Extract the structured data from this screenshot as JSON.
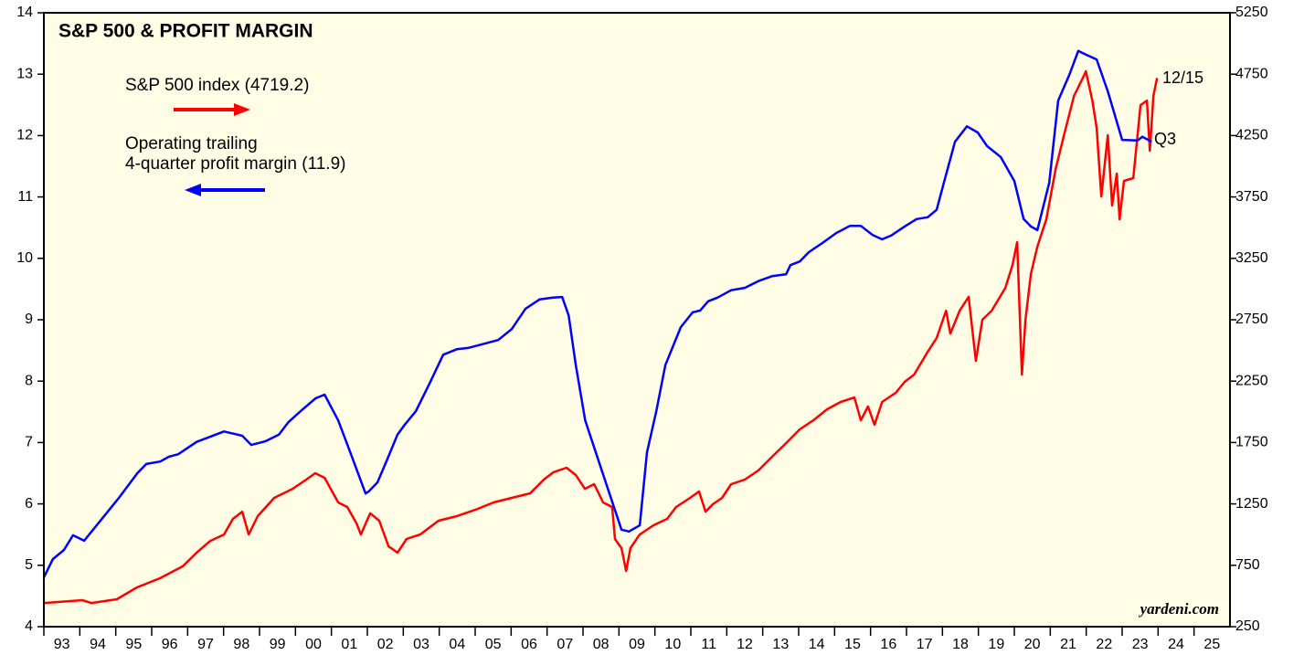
{
  "chart_data": {
    "type": "line",
    "title": "S&P 500 & PROFIT MARGIN",
    "annotations": {
      "sp_date": "12/15",
      "margin_date": "Q3",
      "source": "yardeni.com"
    },
    "xlim": [
      1993,
      2026
    ],
    "xticks": [
      {
        "value": 1993.5,
        "label": "93"
      },
      {
        "value": 1994.5,
        "label": "94"
      },
      {
        "value": 1995.5,
        "label": "95"
      },
      {
        "value": 1996.5,
        "label": "96"
      },
      {
        "value": 1997.5,
        "label": "97"
      },
      {
        "value": 1998.5,
        "label": "98"
      },
      {
        "value": 1999.5,
        "label": "99"
      },
      {
        "value": 2000.5,
        "label": "00"
      },
      {
        "value": 2001.5,
        "label": "01"
      },
      {
        "value": 2002.5,
        "label": "02"
      },
      {
        "value": 2003.5,
        "label": "03"
      },
      {
        "value": 2004.5,
        "label": "04"
      },
      {
        "value": 2005.5,
        "label": "05"
      },
      {
        "value": 2006.5,
        "label": "06"
      },
      {
        "value": 2007.5,
        "label": "07"
      },
      {
        "value": 2008.5,
        "label": "08"
      },
      {
        "value": 2009.5,
        "label": "09"
      },
      {
        "value": 2010.5,
        "label": "10"
      },
      {
        "value": 2011.5,
        "label": "11"
      },
      {
        "value": 2012.5,
        "label": "12"
      },
      {
        "value": 2013.5,
        "label": "13"
      },
      {
        "value": 2014.5,
        "label": "14"
      },
      {
        "value": 2015.5,
        "label": "15"
      },
      {
        "value": 2016.5,
        "label": "16"
      },
      {
        "value": 2017.5,
        "label": "17"
      },
      {
        "value": 2018.5,
        "label": "18"
      },
      {
        "value": 2019.5,
        "label": "19"
      },
      {
        "value": 2020.5,
        "label": "20"
      },
      {
        "value": 2021.5,
        "label": "21"
      },
      {
        "value": 2022.5,
        "label": "22"
      },
      {
        "value": 2023.5,
        "label": "23"
      },
      {
        "value": 2024.5,
        "label": "24"
      },
      {
        "value": 2025.5,
        "label": "25"
      }
    ],
    "ylim": [
      4,
      14
    ],
    "yticks": [
      4,
      5,
      6,
      7,
      8,
      9,
      10,
      11,
      12,
      13,
      14
    ],
    "y2lim": [
      250,
      5250
    ],
    "y2ticks": [
      250,
      750,
      1250,
      1750,
      2250,
      2750,
      3250,
      3750,
      4250,
      4750,
      5250
    ],
    "background": "#fffde6",
    "series": [
      {
        "name": "S&P 500 index (4719.2)",
        "color": "#ff0000",
        "axis": "y2",
        "x": [
          1993.0,
          1994.07,
          1994.32,
          1995.03,
          1995.59,
          1996.23,
          1996.86,
          1997.25,
          1997.63,
          1998.01,
          1998.26,
          1998.52,
          1998.7,
          1998.95,
          1999.41,
          1999.92,
          2000.3,
          2000.55,
          2000.81,
          2001.19,
          2001.44,
          2001.7,
          2001.82,
          2002.08,
          2002.33,
          2002.59,
          2002.84,
          2003.09,
          2003.47,
          2003.98,
          2004.49,
          2005.0,
          2005.51,
          2006.02,
          2006.53,
          2006.91,
          2007.17,
          2007.54,
          2007.8,
          2008.05,
          2008.31,
          2008.56,
          2008.81,
          2008.89,
          2009.07,
          2009.2,
          2009.32,
          2009.58,
          2009.96,
          2010.34,
          2010.59,
          2010.98,
          2011.23,
          2011.41,
          2011.61,
          2011.87,
          2012.12,
          2012.5,
          2012.88,
          2013.26,
          2013.65,
          2014.03,
          2014.41,
          2014.79,
          2015.17,
          2015.55,
          2015.73,
          2015.93,
          2016.11,
          2016.32,
          2016.7,
          2016.95,
          2017.21,
          2017.59,
          2017.84,
          2018.1,
          2018.22,
          2018.48,
          2018.73,
          2018.93,
          2019.11,
          2019.37,
          2019.75,
          2019.95,
          2020.08,
          2020.21,
          2020.31,
          2020.46,
          2020.64,
          2020.89,
          2021.15,
          2021.4,
          2021.66,
          2021.91,
          2021.99,
          2022.17,
          2022.29,
          2022.42,
          2022.6,
          2022.72,
          2022.85,
          2022.93,
          2023.05,
          2023.31,
          2023.51,
          2023.69,
          2023.77,
          2023.87,
          2023.97
        ],
        "values": [
          443,
          466,
          443,
          473,
          570,
          644,
          741,
          853,
          949,
          1001,
          1128,
          1187,
          1001,
          1150,
          1299,
          1373,
          1448,
          1500,
          1463,
          1262,
          1225,
          1091,
          1001,
          1173,
          1113,
          905,
          853,
          964,
          1001,
          1113,
          1150,
          1202,
          1262,
          1299,
          1336,
          1448,
          1507,
          1545,
          1485,
          1373,
          1411,
          1262,
          1225,
          964,
          890,
          704,
          890,
          1001,
          1076,
          1128,
          1225,
          1299,
          1351,
          1187,
          1247,
          1299,
          1411,
          1448,
          1522,
          1634,
          1745,
          1857,
          1931,
          2021,
          2080,
          2117,
          1931,
          2043,
          1894,
          2080,
          2155,
          2244,
          2303,
          2489,
          2601,
          2824,
          2638,
          2824,
          2936,
          2415,
          2750,
          2824,
          3010,
          3196,
          3382,
          2303,
          2750,
          3122,
          3345,
          3568,
          3977,
          4275,
          4573,
          4721,
          4774,
          4535,
          4312,
          3754,
          4253,
          3680,
          3940,
          3568,
          3881,
          3903,
          4498,
          4535,
          4126,
          4573,
          4719
        ]
      },
      {
        "name": "Operating trailing\n4-quarter profit margin  (11.9)",
        "color": "#0000ff",
        "axis": "y",
        "x": [
          1993.0,
          1993.25,
          1993.56,
          1993.81,
          1994.12,
          1994.58,
          1995.09,
          1995.6,
          1995.85,
          1996.24,
          1996.48,
          1996.74,
          1997.25,
          1998.01,
          1998.52,
          1998.77,
          1999.16,
          1999.54,
          1999.8,
          2000.18,
          2000.56,
          2000.81,
          2001.19,
          2001.57,
          2001.95,
          2002.03,
          2002.28,
          2002.53,
          2002.84,
          2003.04,
          2003.35,
          2003.73,
          2004.11,
          2004.49,
          2004.8,
          2005.26,
          2005.64,
          2006.02,
          2006.4,
          2006.79,
          2007.17,
          2007.42,
          2007.6,
          2007.8,
          2008.06,
          2008.44,
          2008.82,
          2009.07,
          2009.28,
          2009.58,
          2009.78,
          2010.04,
          2010.29,
          2010.72,
          2011.05,
          2011.26,
          2011.48,
          2011.74,
          2012.12,
          2012.5,
          2012.88,
          2013.26,
          2013.65,
          2013.77,
          2014.03,
          2014.28,
          2014.66,
          2015.04,
          2015.43,
          2015.73,
          2016.06,
          2016.32,
          2016.57,
          2016.95,
          2017.28,
          2017.59,
          2017.84,
          2018.04,
          2018.35,
          2018.68,
          2018.98,
          2019.24,
          2019.62,
          2020.0,
          2020.26,
          2020.46,
          2020.64,
          2020.97,
          2021.22,
          2021.53,
          2021.78,
          2021.99,
          2022.29,
          2022.6,
          2023.0,
          2023.43,
          2023.56,
          2023.82
        ],
        "values": [
          4.8,
          5.1,
          5.25,
          5.49,
          5.4,
          5.73,
          6.1,
          6.5,
          6.65,
          6.69,
          6.77,
          6.81,
          7.01,
          7.18,
          7.11,
          6.96,
          7.02,
          7.13,
          7.33,
          7.53,
          7.72,
          7.78,
          7.36,
          6.77,
          6.17,
          6.2,
          6.35,
          6.69,
          7.13,
          7.29,
          7.51,
          7.96,
          8.43,
          8.52,
          8.54,
          8.61,
          8.67,
          8.85,
          9.18,
          9.33,
          9.36,
          9.37,
          9.07,
          8.26,
          7.36,
          6.69,
          6.02,
          5.58,
          5.55,
          5.65,
          6.84,
          7.51,
          8.26,
          8.88,
          9.12,
          9.15,
          9.3,
          9.36,
          9.48,
          9.52,
          9.63,
          9.71,
          9.74,
          9.89,
          9.95,
          10.1,
          10.25,
          10.41,
          10.53,
          10.53,
          10.38,
          10.31,
          10.37,
          10.52,
          10.64,
          10.67,
          10.79,
          11.23,
          11.9,
          12.15,
          12.05,
          11.83,
          11.65,
          11.26,
          10.64,
          10.52,
          10.46,
          11.23,
          12.57,
          12.99,
          13.38,
          13.32,
          13.24,
          12.72,
          11.93,
          11.92,
          11.98,
          11.9
        ]
      }
    ]
  }
}
